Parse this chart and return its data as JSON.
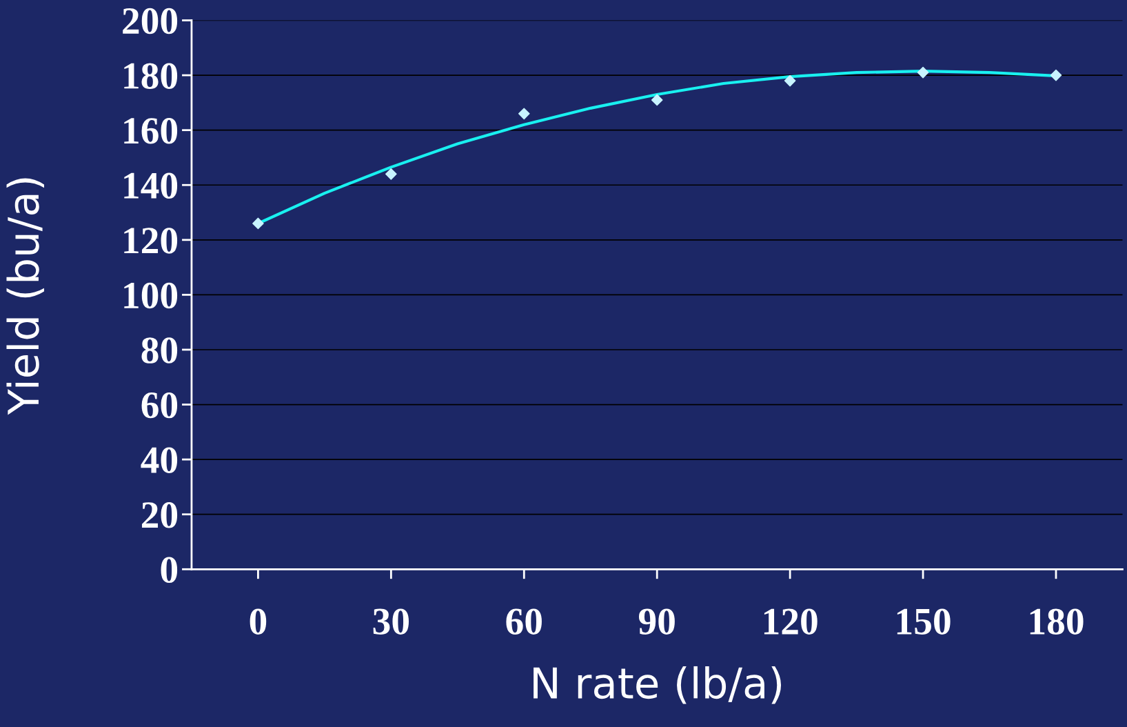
{
  "chart_data": {
    "type": "scatter",
    "xlabel": "N rate (lb/a)",
    "ylabel": "Yield (bu/a)",
    "xlim": [
      -15,
      195
    ],
    "xticks": [
      0,
      30,
      60,
      90,
      120,
      150,
      180
    ],
    "ylim": [
      0,
      200
    ],
    "yticks": [
      0,
      20,
      40,
      60,
      80,
      100,
      120,
      140,
      160,
      180,
      200
    ],
    "grid": "y",
    "marker": "diamond",
    "series": [
      {
        "color": "#c8f4ff",
        "x": [
          0,
          30,
          60,
          90,
          120,
          150,
          180
        ],
        "values": [
          126,
          144,
          166,
          171,
          178,
          181,
          180
        ]
      },
      {
        "type": "line",
        "color": "#19f0f0",
        "marker": "none",
        "line_style": "solid",
        "x": [
          0,
          15,
          30,
          45,
          60,
          75,
          90,
          105,
          120,
          135,
          150,
          165,
          180
        ],
        "values": [
          126,
          137,
          146.5,
          155,
          162,
          168,
          173,
          177,
          179.5,
          181,
          181.5,
          181,
          179.8
        ]
      }
    ]
  }
}
